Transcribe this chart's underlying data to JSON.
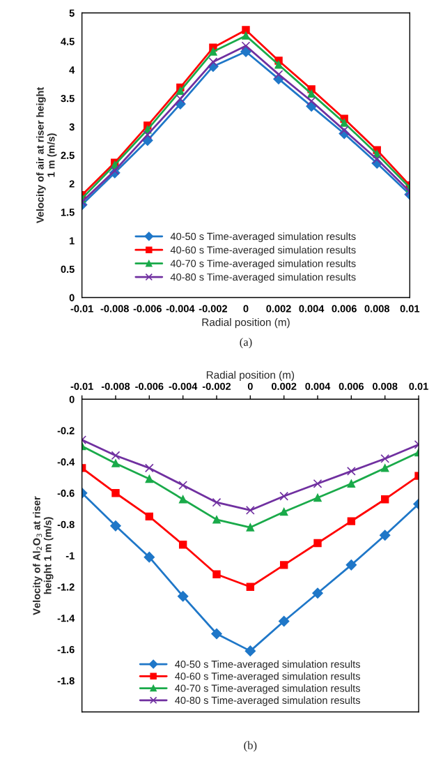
{
  "chart_data": [
    {
      "type": "line",
      "xlabel": "Radial position (m)",
      "ylabel": "Velocity of air at riser height\n1 m (m/s)",
      "x": [
        -0.01,
        -0.008,
        -0.006,
        -0.004,
        -0.002,
        0,
        0.002,
        0.004,
        0.006,
        0.008,
        0.01
      ],
      "series": [
        {
          "name": "40-50 s Time-averaged simulation results",
          "color": "#1f77c8",
          "marker": "diamond",
          "values": [
            1.63,
            2.19,
            2.76,
            3.4,
            4.06,
            4.32,
            3.84,
            3.36,
            2.88,
            2.36,
            1.81
          ]
        },
        {
          "name": "40-60 s Time-averaged simulation results",
          "color": "#ff0000",
          "marker": "square",
          "values": [
            1.8,
            2.37,
            3.02,
            3.69,
            4.39,
            4.7,
            4.16,
            3.66,
            3.14,
            2.59,
            1.97
          ]
        },
        {
          "name": "40-70 s Time-averaged simulation results",
          "color": "#1aaa4a",
          "marker": "triangle",
          "values": [
            1.74,
            2.33,
            2.95,
            3.63,
            4.32,
            4.6,
            4.09,
            3.58,
            3.07,
            2.52,
            1.93
          ]
        },
        {
          "name": "40-80 s Time-averaged simulation results",
          "color": "#7030a0",
          "marker": "cross",
          "values": [
            1.68,
            2.23,
            2.86,
            3.49,
            4.14,
            4.42,
            3.92,
            3.45,
            2.94,
            2.43,
            1.86
          ]
        }
      ],
      "xlim": [
        -0.01,
        0.01
      ],
      "xticks": [
        -0.01,
        -0.008,
        -0.006,
        -0.004,
        -0.002,
        0,
        0.002,
        0.004,
        0.006,
        0.008,
        0.01
      ],
      "ylim": [
        0,
        5
      ],
      "yticks": [
        0,
        0.5,
        1,
        1.5,
        2,
        2.5,
        3,
        3.5,
        4,
        4.5,
        5
      ],
      "grid": false,
      "legend": "bottom",
      "line_style": "solid",
      "annotations": [
        "(a)"
      ]
    },
    {
      "type": "line",
      "xlabel": "Radial position (m)",
      "ylabel": "Velocity of Al$_{2}$O$_{3}$ at riser\nheight 1 m (m/s)",
      "x": [
        -0.01,
        -0.008,
        -0.006,
        -0.004,
        -0.002,
        0,
        0.002,
        0.004,
        0.006,
        0.008,
        0.01
      ],
      "series": [
        {
          "name": "40-50 s Time-averaged simulation results",
          "color": "#1f77c8",
          "marker": "diamond",
          "values": [
            -0.6,
            -0.81,
            -1.01,
            -1.26,
            -1.5,
            -1.61,
            -1.42,
            -1.24,
            -1.06,
            -0.87,
            -0.67
          ]
        },
        {
          "name": "40-60 s Time-averaged simulation results",
          "color": "#ff0000",
          "marker": "square",
          "values": [
            -0.44,
            -0.6,
            -0.75,
            -0.93,
            -1.12,
            -1.2,
            -1.06,
            -0.92,
            -0.78,
            -0.64,
            -0.49
          ]
        },
        {
          "name": "40-70 s Time-averaged simulation results",
          "color": "#1aaa4a",
          "marker": "triangle",
          "values": [
            -0.3,
            -0.41,
            -0.51,
            -0.64,
            -0.77,
            -0.82,
            -0.72,
            -0.63,
            -0.54,
            -0.44,
            -0.34
          ]
        },
        {
          "name": "40-80 s Time-averaged simulation results",
          "color": "#7030a0",
          "marker": "cross",
          "values": [
            -0.26,
            -0.36,
            -0.44,
            -0.55,
            -0.66,
            -0.71,
            -0.62,
            -0.54,
            -0.46,
            -0.38,
            -0.29
          ]
        }
      ],
      "xlim": [
        -0.01,
        0.01
      ],
      "xticks": [
        -0.01,
        -0.008,
        -0.006,
        -0.004,
        -0.002,
        0,
        0.002,
        0.004,
        0.006,
        0.008,
        0.01
      ],
      "ylim": [
        -2,
        0
      ],
      "yticks": [
        -1.8,
        -1.6,
        -1.4,
        -1.2,
        -1,
        -0.8,
        -0.6,
        -0.4,
        -0.2,
        0
      ],
      "grid": false,
      "legend": "bottom",
      "line_style": "solid",
      "annotations": [
        "(b)"
      ]
    }
  ]
}
